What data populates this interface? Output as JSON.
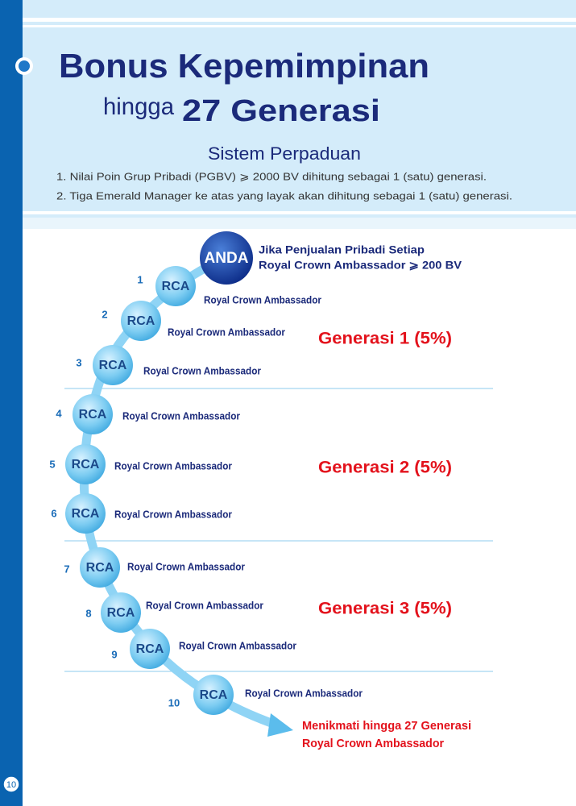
{
  "header": {
    "title": "Bonus Kepemimpinan",
    "subtitle_prefix": "hingga",
    "subtitle": "27 Generasi"
  },
  "system": {
    "title": "Sistem Perpaduan",
    "items": [
      "1. Nilai Poin Grup Pribadi (PGBV)  ⩾ 2000 BV dihitung sebagai  1 (satu) generasi.",
      "2. Tiga Emerald Manager ke atas yang layak akan dihitung sebagai 1 (satu) generasi."
    ]
  },
  "anda": {
    "label": "ANDA",
    "note": [
      "Jika Penjualan Pribadi Setiap",
      "Royal Crown Ambassador  ⩾ 200 BV"
    ]
  },
  "nodes": [
    {
      "number": "1",
      "label": "RCA",
      "caption": "Royal Crown Ambassador"
    },
    {
      "number": "2",
      "label": "RCA",
      "caption": "Royal Crown Ambassador"
    },
    {
      "number": "3",
      "label": "RCA",
      "caption": "Royal Crown Ambassador"
    },
    {
      "number": "4",
      "label": "RCA",
      "caption": "Royal Crown Ambassador"
    },
    {
      "number": "5",
      "label": "RCA",
      "caption": "Royal Crown Ambassador"
    },
    {
      "number": "6",
      "label": "RCA",
      "caption": "Royal Crown Ambassador"
    },
    {
      "number": "7",
      "label": "RCA",
      "caption": "Royal Crown Ambassador"
    },
    {
      "number": "8",
      "label": "RCA",
      "caption": "Royal Crown Ambassador"
    },
    {
      "number": "9",
      "label": "RCA",
      "caption": "Royal Crown Ambassador"
    },
    {
      "number": "10",
      "label": "RCA",
      "caption": "Royal Crown Ambassador"
    }
  ],
  "groups": [
    "Generasi 1 (5%)",
    "Generasi 2 (5%)",
    "Generasi 3 (5%)"
  ],
  "footer": [
    "Menikmati hingga 27 Generasi",
    "Royal Crown Ambassador"
  ],
  "page_number": "10"
}
